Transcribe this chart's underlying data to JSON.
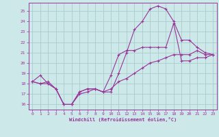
{
  "xlabel": "Windchill (Refroidissement éolien,°C)",
  "bg_color": "#cce8e8",
  "line_color": "#993399",
  "grid_color": "#aacccc",
  "line1_x": [
    0,
    1,
    2,
    3,
    4,
    5,
    6,
    7,
    8,
    9,
    10,
    11,
    12,
    13,
    14,
    15,
    16,
    17,
    18,
    19,
    20,
    21,
    22,
    23
  ],
  "line1_y": [
    18.2,
    18.8,
    18.0,
    17.5,
    16.0,
    16.0,
    17.2,
    17.5,
    17.5,
    17.2,
    17.2,
    19.0,
    21.0,
    23.2,
    24.0,
    25.2,
    25.5,
    25.2,
    24.0,
    22.2,
    22.2,
    21.5,
    21.0,
    20.8
  ],
  "line2_x": [
    0,
    1,
    2,
    3,
    4,
    5,
    6,
    7,
    8,
    9,
    10,
    11,
    12,
    13,
    14,
    15,
    16,
    17,
    18,
    19,
    20,
    21,
    22,
    23
  ],
  "line2_y": [
    18.2,
    18.0,
    18.0,
    17.5,
    16.0,
    16.0,
    17.2,
    17.5,
    17.5,
    17.2,
    18.8,
    20.8,
    21.2,
    21.2,
    21.5,
    21.5,
    21.5,
    21.5,
    23.8,
    20.2,
    20.2,
    20.5,
    20.5,
    20.8
  ],
  "line3_x": [
    0,
    1,
    2,
    3,
    4,
    5,
    6,
    7,
    8,
    9,
    10,
    11,
    12,
    13,
    14,
    15,
    16,
    17,
    18,
    19,
    20,
    21,
    22,
    23
  ],
  "line3_y": [
    18.2,
    18.0,
    18.2,
    17.5,
    16.0,
    16.0,
    17.0,
    17.2,
    17.5,
    17.2,
    17.5,
    18.2,
    18.5,
    19.0,
    19.5,
    20.0,
    20.2,
    20.5,
    20.8,
    20.8,
    20.8,
    21.2,
    20.8,
    20.8
  ],
  "xlim": [
    -0.5,
    23.5
  ],
  "ylim": [
    15.5,
    25.8
  ],
  "yticks": [
    16,
    17,
    18,
    19,
    20,
    21,
    22,
    23,
    24,
    25
  ],
  "xticks": [
    0,
    1,
    2,
    3,
    4,
    5,
    6,
    7,
    8,
    9,
    10,
    11,
    12,
    13,
    14,
    15,
    16,
    17,
    18,
    19,
    20,
    21,
    22,
    23
  ]
}
